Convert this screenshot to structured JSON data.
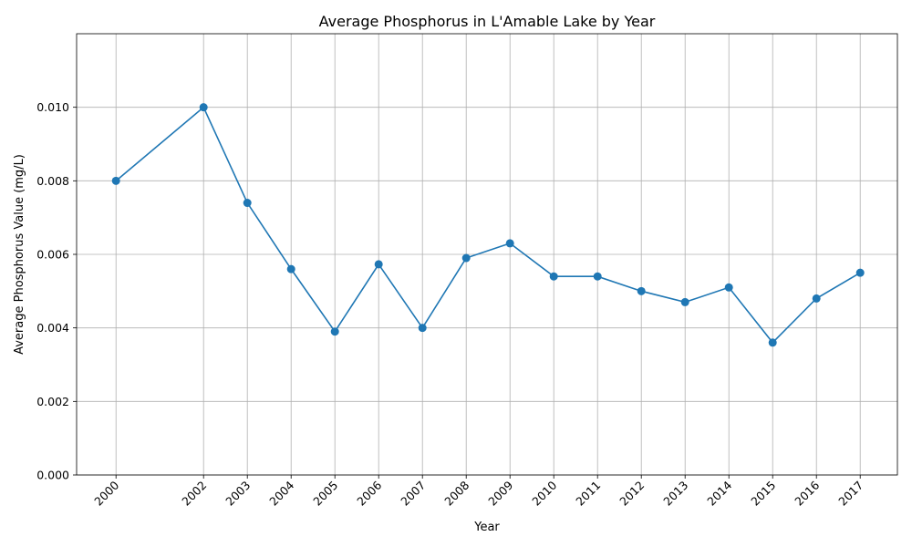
{
  "chart_data": {
    "type": "line",
    "title": "Average Phosphorus in L'Amable Lake by Year",
    "xlabel": "Year",
    "ylabel": "Average Phosphorus Value (mg/L)",
    "x": [
      2000,
      2002,
      2003,
      2004,
      2005,
      2006,
      2007,
      2008,
      2009,
      2010,
      2011,
      2012,
      2013,
      2014,
      2015,
      2016,
      2017
    ],
    "x_tick_labels": [
      "2000",
      "2002",
      "2003",
      "2004",
      "2005",
      "2006",
      "2007",
      "2008",
      "2009",
      "2010",
      "2011",
      "2012",
      "2013",
      "2014",
      "2015",
      "2016",
      "2017"
    ],
    "series": [
      {
        "values": [
          0.008,
          0.01,
          0.0074,
          0.0056,
          0.0039,
          0.00573,
          0.004,
          0.0059,
          0.0063,
          0.0054,
          0.0054,
          0.005,
          0.0047,
          0.0051,
          0.0036,
          0.0048,
          0.0055
        ],
        "color": "#1f77b4"
      }
    ],
    "xlim": [
      1999.1,
      2017.85
    ],
    "ylim": [
      0,
      0.012
    ],
    "y_ticks": [
      0.0,
      0.002,
      0.004,
      0.006,
      0.008,
      0.01
    ],
    "y_tick_labels": [
      "0.000",
      "0.002",
      "0.004",
      "0.006",
      "0.008",
      "0.010"
    ],
    "grid": true,
    "legend": "none",
    "marker": "circle"
  }
}
